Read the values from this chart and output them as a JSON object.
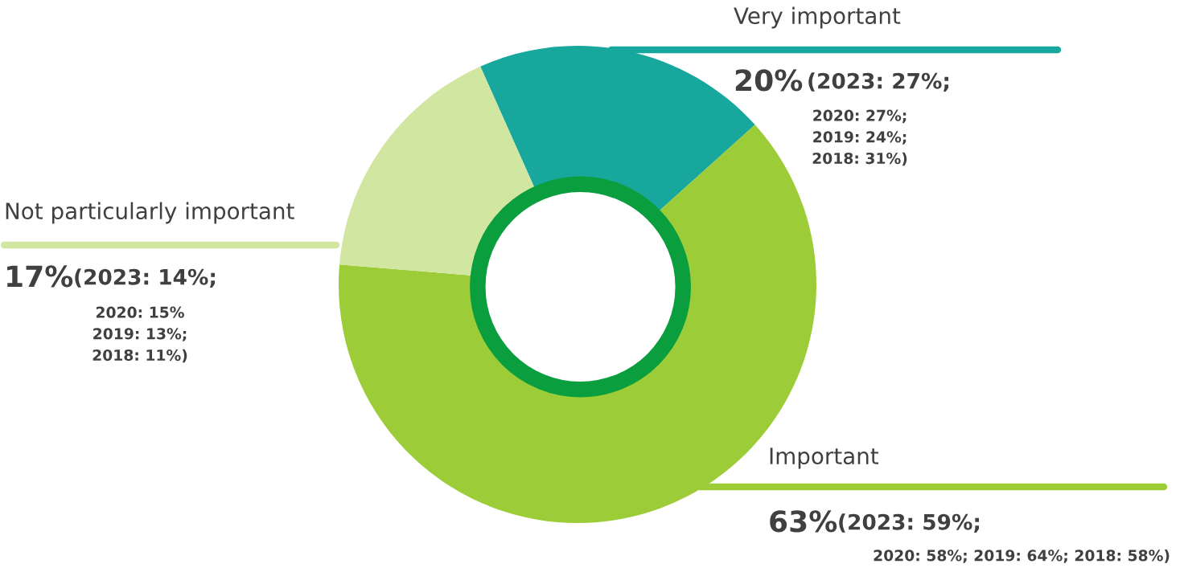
{
  "chart_data": {
    "type": "donut",
    "categories": [
      "Very important",
      "Important",
      "Not particularly important"
    ],
    "values": [
      20,
      63,
      17
    ],
    "colors": [
      "#17a79d",
      "#9ccd38",
      "#d1e7a1"
    ],
    "value_labels": [
      "20%",
      "63%",
      "17%"
    ],
    "annotations": [
      "(2023: 27%;",
      "2020: 27%;\n2019: 24%;\n2018: 31%)",
      "(2023: 59%;",
      "2020: 58%; 2019: 64%; 2018: 58%)",
      "(2023: 14%;",
      "2020: 15%\n2019: 13%;\n2018: 11%)"
    ],
    "legend": false
  }
}
